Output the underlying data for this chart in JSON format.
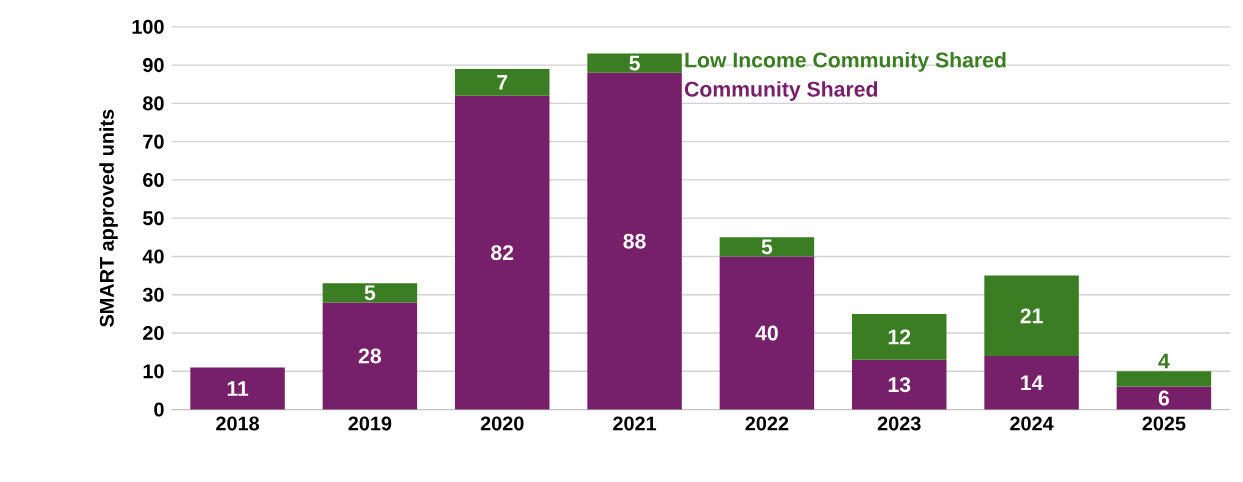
{
  "chart_data": {
    "type": "bar",
    "stacked": true,
    "ylabel": "SMART approved units",
    "categories": [
      "2018",
      "2019",
      "2020",
      "2021",
      "2022",
      "2023",
      "2024",
      "2025"
    ],
    "series": [
      {
        "name": "Community Shared",
        "color": "#76206a",
        "values": [
          11,
          28,
          82,
          88,
          40,
          13,
          14,
          6
        ]
      },
      {
        "name": "Low Income Community Shared",
        "color": "#3a7d22",
        "values": [
          null,
          5,
          7,
          5,
          5,
          12,
          21,
          4
        ]
      }
    ],
    "ylim": [
      0,
      100
    ],
    "yticks": [
      0,
      10,
      20,
      30,
      40,
      50,
      60,
      70,
      80,
      90,
      100
    ],
    "grid": "y",
    "data_labels": true,
    "legend": "top"
  }
}
